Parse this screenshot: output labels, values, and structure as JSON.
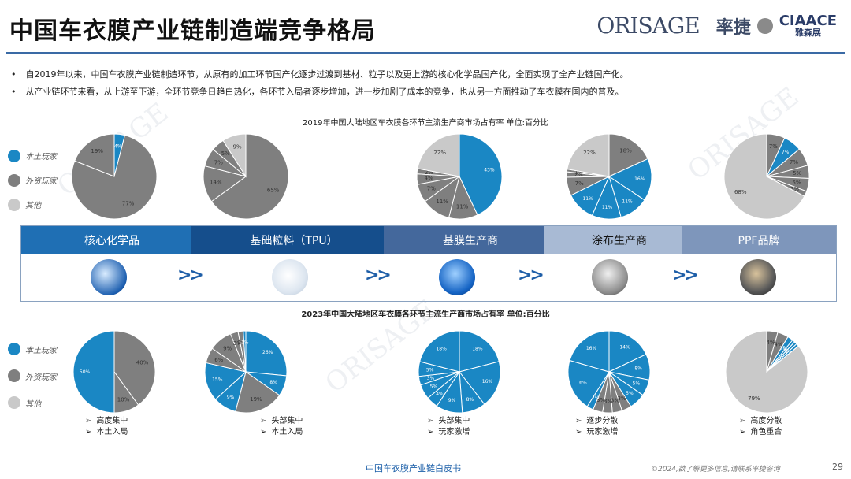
{
  "header": {
    "title": "中国车衣膜产业链制造端竞争格局",
    "logo_text": "ORISAGE",
    "logo_cn": "率捷",
    "logo2_en": "CIAACE",
    "logo2_cn": "雅森展"
  },
  "bullets": [
    "自2019年以来，中国车衣膜产业链制造环节，从原有的加工环节国产化逐步过渡到基材、粒子以及更上游的核心化学品国产化，全面实现了全产业链国产化。",
    "从产业链环节来看，从上游至下游，全环节竞争日趋白热化，各环节入局者逐步增加，进一步加剧了成本的竞争，也从另一方面推动了车衣膜在国内的普及。"
  ],
  "legend": {
    "domestic": "本土玩家",
    "foreign": "外资玩家",
    "other": "其他"
  },
  "colors": {
    "domestic": "#1a87c4",
    "foreign": "#7f7f7f",
    "other": "#c9c9c9",
    "stage1": "#1f5fa8",
    "stage2": "#164a85",
    "stage3": "#4a6fa0",
    "stage4": "#a8b9d2",
    "stage5": "#7e96bb"
  },
  "chart_data": [
    {
      "type": "pie",
      "title": "2019年中国大陆地区车衣膜各环节主流生产商市场占有率 单位:百分比",
      "charts": [
        {
          "stage": "核心化学品",
          "slices": [
            {
              "group": "domestic",
              "value": 4,
              "label": "4%"
            },
            {
              "group": "foreign",
              "value": 77,
              "label": "77%"
            },
            {
              "group": "foreign",
              "value": 19,
              "label": "19%"
            }
          ]
        },
        {
          "stage": "基础粒料（TPU）",
          "slices": [
            {
              "group": "foreign",
              "value": 65,
              "label": "65%"
            },
            {
              "group": "foreign",
              "value": 14,
              "label": "14%"
            },
            {
              "group": "foreign",
              "value": 7,
              "label": "7%"
            },
            {
              "group": "foreign",
              "value": 5,
              "label": "5%"
            },
            {
              "group": "other",
              "value": 9,
              "label": "9%"
            }
          ]
        },
        {
          "stage": "基膜生产商",
          "slices": [
            {
              "group": "domestic",
              "value": 43,
              "label": "43%"
            },
            {
              "group": "foreign",
              "value": 11,
              "label": "11%"
            },
            {
              "group": "foreign",
              "value": 11,
              "label": "11%"
            },
            {
              "group": "foreign",
              "value": 7,
              "label": "7%"
            },
            {
              "group": "foreign",
              "value": 4,
              "label": "4%"
            },
            {
              "group": "foreign",
              "value": 2,
              "label": "2%"
            },
            {
              "group": "other",
              "value": 22,
              "label": "22%"
            }
          ]
        },
        {
          "stage": "涂布生产商",
          "slices": [
            {
              "group": "foreign",
              "value": 18,
              "label": "18%"
            },
            {
              "group": "domestic",
              "value": 16,
              "label": "16%"
            },
            {
              "group": "domestic",
              "value": 11,
              "label": "11%"
            },
            {
              "group": "domestic",
              "value": 11,
              "label": "11%"
            },
            {
              "group": "domestic",
              "value": 11,
              "label": "11%"
            },
            {
              "group": "foreign",
              "value": 7,
              "label": "7%"
            },
            {
              "group": "foreign",
              "value": 2,
              "label": "2%"
            },
            {
              "group": "foreign",
              "value": 1,
              "label": "1%"
            },
            {
              "group": "other",
              "value": 22,
              "label": "22%"
            }
          ]
        },
        {
          "stage": "PPF品牌",
          "slices": [
            {
              "group": "foreign",
              "value": 7,
              "label": "7%"
            },
            {
              "group": "domestic",
              "value": 7,
              "label": "7%"
            },
            {
              "group": "foreign",
              "value": 7,
              "label": "7%"
            },
            {
              "group": "foreign",
              "value": 5,
              "label": "5%"
            },
            {
              "group": "foreign",
              "value": 5,
              "label": "5%"
            },
            {
              "group": "foreign",
              "value": 2,
              "label": "2%"
            },
            {
              "group": "other",
              "value": 68,
              "label": "68%"
            }
          ]
        }
      ]
    },
    {
      "type": "pie",
      "title": "2023年中国大陆地区车衣膜各环节主流生产商市场占有率 单位:百分比",
      "charts": [
        {
          "stage": "核心化学品",
          "slices": [
            {
              "group": "foreign",
              "value": 40,
              "label": "40%"
            },
            {
              "group": "foreign",
              "value": 10,
              "label": "10%"
            },
            {
              "group": "domestic",
              "value": 50,
              "label": "50%"
            }
          ]
        },
        {
          "stage": "基础粒料（TPU）",
          "slices": [
            {
              "group": "domestic",
              "value": 26,
              "label": "26%"
            },
            {
              "group": "domestic",
              "value": 8,
              "label": "8%"
            },
            {
              "group": "foreign",
              "value": 19,
              "label": "19%"
            },
            {
              "group": "domestic",
              "value": 9,
              "label": "9%"
            },
            {
              "group": "domestic",
              "value": 15,
              "label": "15%"
            },
            {
              "group": "foreign",
              "value": 6,
              "label": "6%"
            },
            {
              "group": "foreign",
              "value": 9,
              "label": "9%"
            },
            {
              "group": "foreign",
              "value": 3,
              "label": "3%"
            },
            {
              "group": "foreign",
              "value": 2,
              "label": "2%"
            },
            {
              "group": "domestic",
              "value": 1,
              "label": "1%"
            }
          ]
        },
        {
          "stage": "基膜生产商",
          "slices": [
            {
              "group": "domestic",
              "value": 18,
              "label": "18%"
            },
            {
              "group": "domestic",
              "value": 16,
              "label": "16%"
            },
            {
              "group": "domestic",
              "value": 8,
              "label": "8%"
            },
            {
              "group": "domestic",
              "value": 9,
              "label": "9%"
            },
            {
              "group": "domestic",
              "value": 4,
              "label": "4%"
            },
            {
              "group": "domestic",
              "value": 5,
              "label": "5%"
            },
            {
              "group": "domestic",
              "value": 3,
              "label": "3%"
            },
            {
              "group": "domestic",
              "value": 5,
              "label": "5%"
            },
            {
              "group": "domestic",
              "value": 18,
              "label": "18%"
            }
          ]
        },
        {
          "stage": "涂布生产商",
          "slices": [
            {
              "group": "domestic",
              "value": 14,
              "label": "14%"
            },
            {
              "group": "domestic",
              "value": 8,
              "label": "8%"
            },
            {
              "group": "domestic",
              "value": 5,
              "label": "5%"
            },
            {
              "group": "domestic",
              "value": 5,
              "label": "5%"
            },
            {
              "group": "foreign",
              "value": 3,
              "label": "3%"
            },
            {
              "group": "foreign",
              "value": 3,
              "label": "3%"
            },
            {
              "group": "foreign",
              "value": 3,
              "label": "3%"
            },
            {
              "group": "foreign",
              "value": 3,
              "label": "3%"
            },
            {
              "group": "domestic",
              "value": 2,
              "label": "2%"
            },
            {
              "group": "domestic",
              "value": 16,
              "label": "16%"
            },
            {
              "group": "domestic",
              "value": 16,
              "label": "16%"
            }
          ]
        },
        {
          "stage": "PPF品牌",
          "slices": [
            {
              "group": "foreign",
              "value": 4,
              "label": "4%"
            },
            {
              "group": "foreign",
              "value": 4,
              "label": "4%"
            },
            {
              "group": "domestic",
              "value": 2,
              "label": "2%"
            },
            {
              "group": "domestic",
              "value": 1,
              "label": "1%"
            },
            {
              "group": "domestic",
              "value": 1,
              "label": "1%"
            },
            {
              "group": "domestic",
              "value": 1,
              "label": "1%"
            },
            {
              "group": "other",
              "value": 79,
              "label": "79%"
            }
          ]
        }
      ]
    }
  ],
  "stages": [
    "核心化学品",
    "基础粒料（TPU）",
    "基膜生产商",
    "涂布生产商",
    "PPF品牌"
  ],
  "arrow_text": ">>",
  "notes": [
    [
      "高度集中",
      "本土入局"
    ],
    [
      "头部集中",
      "本土入局"
    ],
    [
      "头部集中",
      "玩家激增"
    ],
    [
      "逐步分散",
      "玩家激增"
    ],
    [
      "高度分散",
      "角色重合"
    ]
  ],
  "footer": {
    "center": "中国车衣膜产业链白皮书",
    "right": "©2024,欲了解更多信息,请联系率捷咨询",
    "page": "29"
  }
}
